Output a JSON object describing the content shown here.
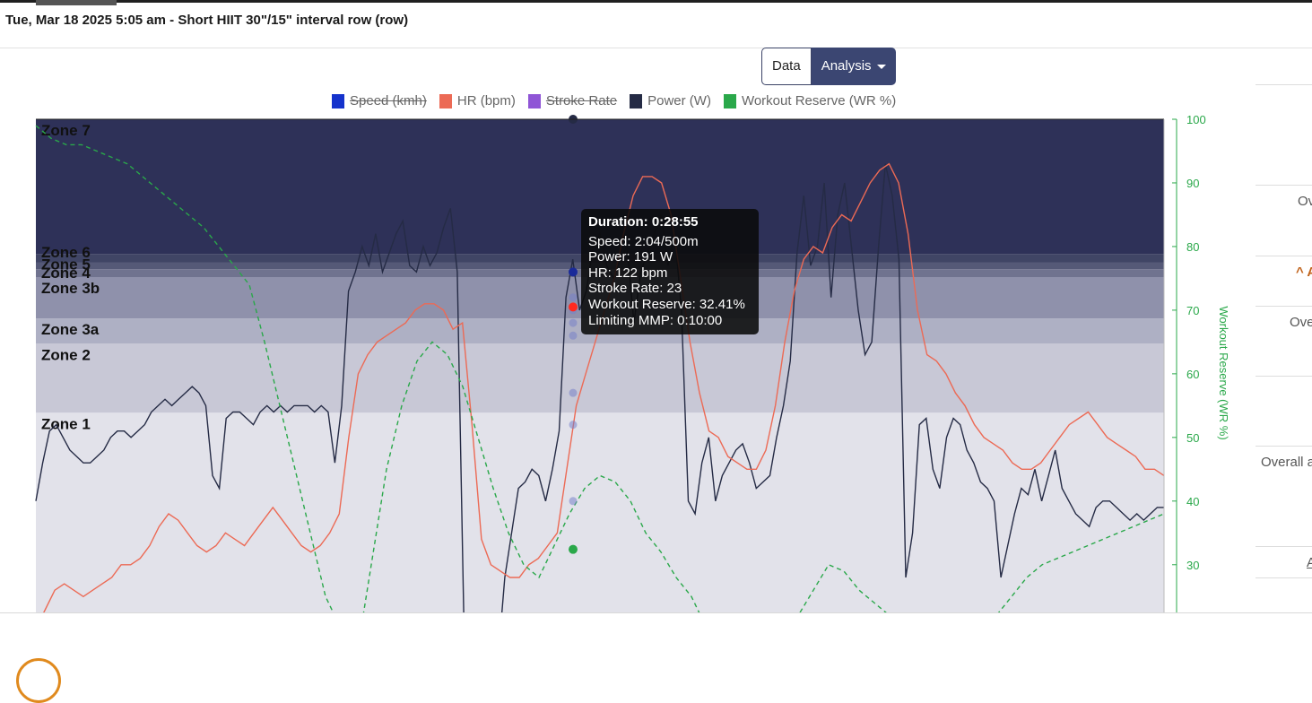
{
  "header": {
    "title": "Tue, Mar 18 2025 5:05 am - Short HIIT 30\"/15\" interval row (row)"
  },
  "toolbar": {
    "data_label": "Data",
    "analysis_label": "Analysis"
  },
  "legend": [
    {
      "label": "Speed (kmh)",
      "color": "#1533cc",
      "hidden": true
    },
    {
      "label": "HR (bpm)",
      "color": "#ec6a55",
      "hidden": false
    },
    {
      "label": "Stroke Rate",
      "color": "#8f55d6",
      "hidden": true
    },
    {
      "label": "Power (W)",
      "color": "#252b45",
      "hidden": false
    },
    {
      "label": "Workout Reserve (WR %)",
      "color": "#2aa84a",
      "hidden": false
    }
  ],
  "tooltip": {
    "title": "Duration: 0:28:55",
    "lines": [
      "Speed: 2:04/500m",
      "Power: 191 W",
      "HR: 122 bpm",
      "Stroke Rate: 23",
      "Workout Reserve: 32.41%",
      "Limiting MMP: 0:10:00"
    ]
  },
  "side_panel": {
    "row1": "Ov",
    "row2": "^ A",
    "row3": "Ove",
    "row4": "Overall a",
    "row5": "A"
  },
  "chart_data": {
    "type": "line",
    "title": "",
    "right_axis": {
      "label": "Workout Reserve (WR %)",
      "ticks": [
        30,
        40,
        50,
        60,
        70,
        80,
        90,
        100
      ],
      "range": [
        22.5,
        100
      ]
    },
    "zones": [
      {
        "name": "Zone 1",
        "top_pct": 40.5,
        "color": "#e2e2ea"
      },
      {
        "name": "Zone 2",
        "top_pct": 54.5,
        "color": "#c8c8d6"
      },
      {
        "name": "Zone 3a",
        "top_pct": 59.6,
        "color": "#aeb0c4"
      },
      {
        "name": "Zone 3b",
        "top_pct": 68.0,
        "color": "#8f91ab"
      },
      {
        "name": "Zone 4",
        "top_pct": 69.6,
        "color": "#70738f"
      },
      {
        "name": "Zone 5",
        "top_pct": 71.0,
        "color": "#555977"
      },
      {
        "name": "Zone 6",
        "top_pct": 72.7,
        "color": "#404565"
      },
      {
        "name": "Zone 7",
        "top_pct": 100,
        "color": "#2e3158"
      }
    ],
    "series": [
      {
        "name": "Power (W)",
        "values": [
          40,
          46,
          51,
          52,
          50,
          48,
          47,
          46,
          46,
          47,
          48,
          50,
          51,
          51,
          50,
          51,
          52,
          54,
          55,
          56,
          55,
          56,
          57,
          58,
          57,
          55,
          44,
          42,
          53,
          54,
          54,
          53,
          52,
          54,
          55,
          54,
          55,
          54,
          55,
          55,
          55,
          54,
          55,
          54,
          46,
          55,
          73,
          76,
          80,
          77,
          82,
          76,
          79,
          82,
          84,
          77,
          76,
          80,
          77,
          79,
          83,
          86,
          76,
          20,
          10,
          15,
          20,
          12,
          15,
          28,
          35,
          42,
          43,
          45,
          44,
          40,
          45,
          51,
          72,
          78,
          70,
          73,
          80,
          82,
          77,
          75,
          78,
          80,
          68,
          76,
          79,
          82,
          85,
          77,
          82,
          70,
          40,
          38,
          46,
          50,
          40,
          44,
          46,
          48,
          49,
          46,
          42,
          43,
          44,
          50,
          55,
          62,
          79,
          88,
          77,
          80,
          90,
          72,
          85,
          90,
          80,
          70,
          63,
          65,
          80,
          93,
          88,
          78,
          28,
          35,
          52,
          53,
          45,
          42,
          50,
          53,
          52,
          48,
          46,
          43,
          42,
          40,
          28,
          33,
          38,
          42,
          41,
          45,
          40,
          44,
          48,
          42,
          40,
          38,
          37,
          36,
          39,
          40,
          40,
          39,
          38,
          37,
          38,
          37,
          38,
          39,
          39
        ],
        "color": "#252b45"
      },
      {
        "name": "HR (bpm)",
        "values": [
          20,
          23,
          26,
          27,
          26,
          25,
          26,
          27,
          28,
          30,
          30,
          31,
          33,
          36,
          38,
          37,
          35,
          33,
          32,
          33,
          35,
          34,
          33,
          35,
          37,
          39,
          37,
          35,
          33,
          32,
          33,
          35,
          38,
          50,
          60,
          63,
          65,
          66,
          67,
          68,
          70,
          71,
          71,
          70,
          67,
          68,
          52,
          34,
          30,
          29,
          28,
          28,
          30,
          31,
          33,
          35,
          45,
          55,
          60,
          65,
          70,
          75,
          82,
          88,
          91,
          91,
          90,
          85,
          75,
          65,
          57,
          51,
          50,
          47,
          46,
          45,
          45,
          48,
          55,
          65,
          73,
          78,
          80,
          79,
          83,
          85,
          84,
          87,
          90,
          92,
          93,
          90,
          82,
          70,
          63,
          62,
          60,
          57,
          55,
          52,
          50,
          49,
          48,
          46,
          45,
          45,
          46,
          48,
          50,
          52,
          53,
          54,
          52,
          50,
          49,
          48,
          47,
          45,
          45,
          44
        ],
        "color": "#ec6a55"
      },
      {
        "name": "Workout Reserve (WR %)",
        "values": [
          99,
          97,
          96,
          96,
          95,
          94,
          93,
          91,
          89,
          87,
          85,
          83,
          80,
          77,
          74,
          65,
          55,
          45,
          35,
          25,
          20,
          15,
          30,
          45,
          55,
          62,
          65,
          63,
          58,
          50,
          42,
          35,
          30,
          28,
          33,
          38,
          42,
          44,
          43,
          40,
          35,
          32,
          28,
          25,
          20,
          18,
          17,
          16,
          17,
          19,
          22,
          26,
          30,
          29,
          26,
          24,
          22,
          20,
          19,
          18,
          18,
          19,
          20,
          22,
          25,
          28,
          30,
          31,
          32,
          33,
          34,
          35,
          36,
          37,
          38
        ],
        "color": "#2aa84a"
      }
    ],
    "hover": {
      "values": [
        66,
        72,
        70,
        68,
        57,
        52,
        40
      ],
      "active_wr": 32.41,
      "active_hr": 122
    }
  }
}
